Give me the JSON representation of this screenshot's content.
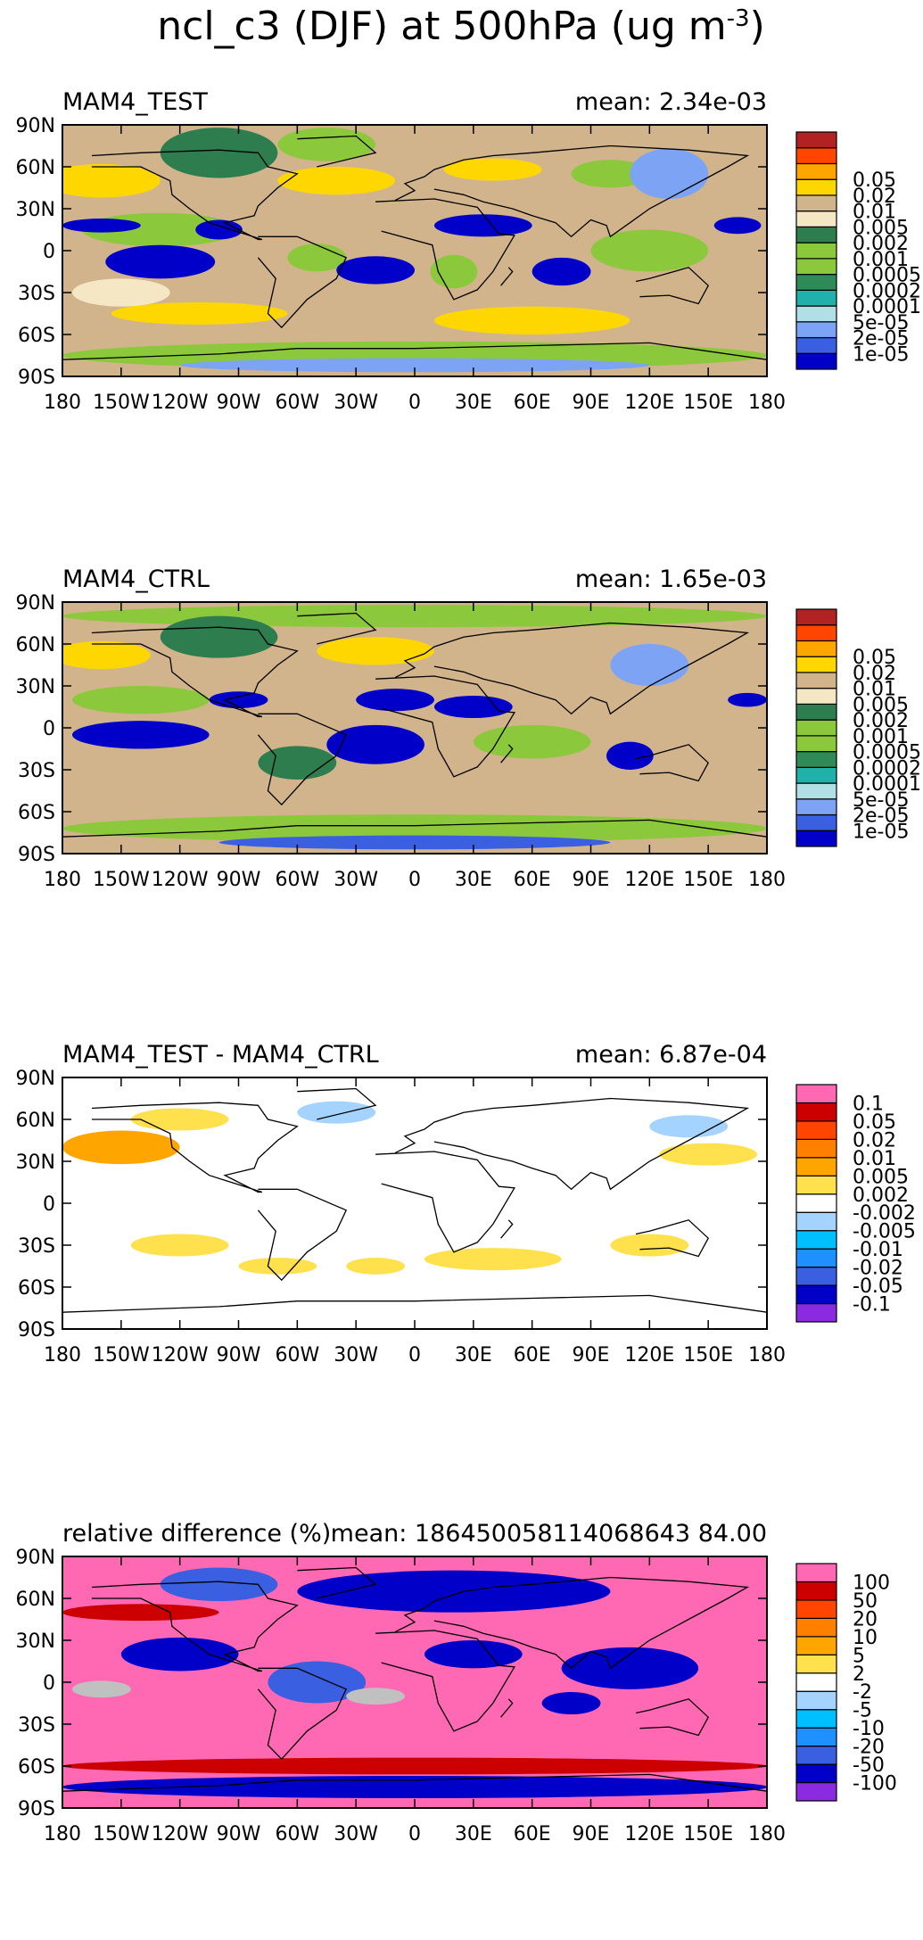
{
  "figure": {
    "title_main": "ncl_c3 (DJF) at 500hPa (ug m",
    "title_sup": "-3",
    "title_close": ")"
  },
  "chart_data": [
    {
      "type": "heatmap",
      "title_left": "MAM4_TEST",
      "title_right": "mean: 2.34e-03",
      "xlabels": [
        "180",
        "150W",
        "120W",
        "90W",
        "60W",
        "30W",
        "0",
        "30E",
        "60E",
        "90E",
        "120E",
        "150E",
        "180"
      ],
      "ylabels": [
        "90N",
        "60N",
        "30N",
        "0",
        "30S",
        "60S",
        "90S"
      ],
      "colorbar": {
        "labels": [
          "0.05",
          "0.02",
          "0.01",
          "0.005",
          "0.002",
          "0.001",
          "0.0005",
          "0.0002",
          "0.0001",
          "5e-05",
          "2e-05",
          "1e-05"
        ],
        "colors": [
          "#0000c8",
          "#3a5fe0",
          "#7da3f5",
          "#b0e0e6",
          "#20b2aa",
          "#2e8b57",
          "#8cc83c",
          "#8cc83c",
          "#2e7d4f",
          "#f5e6c4",
          "#d2b48c",
          "#ffd700",
          "#ffa500",
          "#ff4500",
          "#b22222"
        ]
      },
      "field": {
        "base": "#d2b48c",
        "blobs": [
          {
            "lon": -100,
            "lat": 70,
            "rx": 30,
            "ry": 18,
            "c": "#2e7d4f"
          },
          {
            "lon": -45,
            "lat": 76,
            "rx": 25,
            "ry": 12,
            "c": "#8cc83c"
          },
          {
            "lon": -160,
            "lat": 50,
            "rx": 30,
            "ry": 12,
            "c": "#ffd700"
          },
          {
            "lon": -40,
            "lat": 50,
            "rx": 30,
            "ry": 10,
            "c": "#ffd700"
          },
          {
            "lon": 40,
            "lat": 58,
            "rx": 25,
            "ry": 8,
            "c": "#ffd700"
          },
          {
            "lon": 100,
            "lat": 55,
            "rx": 20,
            "ry": 10,
            "c": "#8cc83c"
          },
          {
            "lon": 130,
            "lat": 55,
            "rx": 20,
            "ry": 18,
            "c": "#7da3f5"
          },
          {
            "lon": -130,
            "lat": 15,
            "rx": 40,
            "ry": 12,
            "c": "#8cc83c"
          },
          {
            "lon": -100,
            "lat": 15,
            "rx": 12,
            "ry": 7,
            "c": "#0000c8"
          },
          {
            "lon": -160,
            "lat": 18,
            "rx": 20,
            "ry": 5,
            "c": "#0000c8"
          },
          {
            "lon": -130,
            "lat": -8,
            "rx": 28,
            "ry": 12,
            "c": "#0000c8"
          },
          {
            "lon": -50,
            "lat": -5,
            "rx": 15,
            "ry": 10,
            "c": "#8cc83c"
          },
          {
            "lon": -20,
            "lat": -14,
            "rx": 20,
            "ry": 10,
            "c": "#0000c8"
          },
          {
            "lon": 20,
            "lat": -15,
            "rx": 12,
            "ry": 12,
            "c": "#8cc83c"
          },
          {
            "lon": 35,
            "lat": 18,
            "rx": 25,
            "ry": 8,
            "c": "#0000c8"
          },
          {
            "lon": 75,
            "lat": -15,
            "rx": 15,
            "ry": 10,
            "c": "#0000c8"
          },
          {
            "lon": 120,
            "lat": 0,
            "rx": 30,
            "ry": 15,
            "c": "#8cc83c"
          },
          {
            "lon": 165,
            "lat": 18,
            "rx": 12,
            "ry": 6,
            "c": "#0000c8"
          },
          {
            "lon": -110,
            "lat": -45,
            "rx": 45,
            "ry": 8,
            "c": "#ffd700"
          },
          {
            "lon": 60,
            "lat": -50,
            "rx": 50,
            "ry": 10,
            "c": "#ffd700"
          },
          {
            "lon": -150,
            "lat": -30,
            "rx": 25,
            "ry": 10,
            "c": "#f5e6c4"
          },
          {
            "lon": 0,
            "lat": -75,
            "rx": 180,
            "ry": 10,
            "c": "#8cc83c"
          },
          {
            "lon": 0,
            "lat": -82,
            "rx": 120,
            "ry": 5,
            "c": "#7da3f5"
          }
        ]
      }
    },
    {
      "type": "heatmap",
      "title_left": "MAM4_CTRL",
      "title_right": "mean: 1.65e-03",
      "xlabels": [
        "180",
        "150W",
        "120W",
        "90W",
        "60W",
        "30W",
        "0",
        "30E",
        "60E",
        "90E",
        "120E",
        "150E",
        "180"
      ],
      "ylabels": [
        "90N",
        "60N",
        "30N",
        "0",
        "30S",
        "60S",
        "90S"
      ],
      "colorbar": {
        "labels": [
          "0.05",
          "0.02",
          "0.01",
          "0.005",
          "0.002",
          "0.001",
          "0.0005",
          "0.0002",
          "0.0001",
          "5e-05",
          "2e-05",
          "1e-05"
        ],
        "colors": [
          "#0000c8",
          "#3a5fe0",
          "#7da3f5",
          "#b0e0e6",
          "#20b2aa",
          "#2e8b57",
          "#8cc83c",
          "#8cc83c",
          "#2e7d4f",
          "#f5e6c4",
          "#d2b48c",
          "#ffd700",
          "#ffa500",
          "#ff4500",
          "#b22222"
        ]
      },
      "field": {
        "base": "#d2b48c",
        "blobs": [
          {
            "lon": 0,
            "lat": 80,
            "rx": 180,
            "ry": 8,
            "c": "#8cc83c"
          },
          {
            "lon": -100,
            "lat": 65,
            "rx": 30,
            "ry": 15,
            "c": "#2e7d4f"
          },
          {
            "lon": -160,
            "lat": 52,
            "rx": 25,
            "ry": 10,
            "c": "#ffd700"
          },
          {
            "lon": -20,
            "lat": 55,
            "rx": 30,
            "ry": 10,
            "c": "#ffd700"
          },
          {
            "lon": 120,
            "lat": 45,
            "rx": 20,
            "ry": 15,
            "c": "#7da3f5"
          },
          {
            "lon": -140,
            "lat": 20,
            "rx": 35,
            "ry": 10,
            "c": "#8cc83c"
          },
          {
            "lon": -90,
            "lat": 20,
            "rx": 15,
            "ry": 6,
            "c": "#0000c8"
          },
          {
            "lon": -140,
            "lat": -5,
            "rx": 35,
            "ry": 10,
            "c": "#0000c8"
          },
          {
            "lon": -20,
            "lat": -12,
            "rx": 25,
            "ry": 14,
            "c": "#0000c8"
          },
          {
            "lon": -10,
            "lat": 20,
            "rx": 20,
            "ry": 8,
            "c": "#0000c8"
          },
          {
            "lon": 30,
            "lat": 15,
            "rx": 20,
            "ry": 8,
            "c": "#0000c8"
          },
          {
            "lon": 110,
            "lat": -20,
            "rx": 12,
            "ry": 10,
            "c": "#0000c8"
          },
          {
            "lon": 170,
            "lat": 20,
            "rx": 10,
            "ry": 5,
            "c": "#0000c8"
          },
          {
            "lon": 60,
            "lat": -10,
            "rx": 30,
            "ry": 12,
            "c": "#8cc83c"
          },
          {
            "lon": -60,
            "lat": -25,
            "rx": 20,
            "ry": 12,
            "c": "#2e7d4f"
          },
          {
            "lon": 0,
            "lat": -72,
            "rx": 180,
            "ry": 10,
            "c": "#8cc83c"
          },
          {
            "lon": 0,
            "lat": -82,
            "rx": 100,
            "ry": 5,
            "c": "#3a5fe0"
          }
        ]
      }
    },
    {
      "type": "heatmap",
      "title_left": "MAM4_TEST - MAM4_CTRL",
      "title_right": "mean: 6.87e-04",
      "xlabels": [
        "180",
        "150W",
        "120W",
        "90W",
        "60W",
        "30W",
        "0",
        "30E",
        "60E",
        "90E",
        "120E",
        "150E",
        "180"
      ],
      "ylabels": [
        "90N",
        "60N",
        "30N",
        "0",
        "30S",
        "60S",
        "90S"
      ],
      "colorbar": {
        "labels": [
          "0.1",
          "0.05",
          "0.02",
          "0.01",
          "0.005",
          "0.002",
          "-0.002",
          "-0.005",
          "-0.01",
          "-0.02",
          "-0.05",
          "-0.1"
        ],
        "colors": [
          "#8a2be2",
          "#0000c8",
          "#3a5fe0",
          "#1e90ff",
          "#00bfff",
          "#a4d3ff",
          "#ffffff",
          "#ffe14d",
          "#ffa500",
          "#ff7f00",
          "#ff4500",
          "#cc0000",
          "#ff69b4"
        ]
      },
      "field": {
        "base": "#ffffff",
        "blobs": [
          {
            "lon": -150,
            "lat": 40,
            "rx": 30,
            "ry": 12,
            "c": "#ffa500"
          },
          {
            "lon": -120,
            "lat": 60,
            "rx": 25,
            "ry": 8,
            "c": "#ffe14d"
          },
          {
            "lon": -40,
            "lat": 65,
            "rx": 20,
            "ry": 8,
            "c": "#a4d3ff"
          },
          {
            "lon": 150,
            "lat": 35,
            "rx": 25,
            "ry": 8,
            "c": "#ffe14d"
          },
          {
            "lon": 140,
            "lat": 55,
            "rx": 20,
            "ry": 8,
            "c": "#a4d3ff"
          },
          {
            "lon": -120,
            "lat": -30,
            "rx": 25,
            "ry": 8,
            "c": "#ffe14d"
          },
          {
            "lon": -70,
            "lat": -45,
            "rx": 20,
            "ry": 6,
            "c": "#ffe14d"
          },
          {
            "lon": 40,
            "lat": -40,
            "rx": 35,
            "ry": 8,
            "c": "#ffe14d"
          },
          {
            "lon": 120,
            "lat": -30,
            "rx": 20,
            "ry": 8,
            "c": "#ffe14d"
          },
          {
            "lon": -20,
            "lat": -45,
            "rx": 15,
            "ry": 6,
            "c": "#ffe14d"
          }
        ]
      }
    },
    {
      "type": "heatmap",
      "title_left": "relative difference (%)",
      "title_right": "mean: 186450058114068643 84.00",
      "xlabels": [
        "180",
        "150W",
        "120W",
        "90W",
        "60W",
        "30W",
        "0",
        "30E",
        "60E",
        "90E",
        "120E",
        "150E",
        "180"
      ],
      "ylabels": [
        "90N",
        "60N",
        "30N",
        "0",
        "30S",
        "60S",
        "90S"
      ],
      "colorbar": {
        "labels": [
          "100",
          "50",
          "20",
          "10",
          "5",
          "2",
          "-2",
          "-5",
          "-10",
          "-20",
          "-50",
          "-100"
        ],
        "colors": [
          "#8a2be2",
          "#0000c8",
          "#3a5fe0",
          "#1e90ff",
          "#00bfff",
          "#a4d3ff",
          "#ffffff",
          "#ffe14d",
          "#ffa500",
          "#ff7f00",
          "#ff4500",
          "#cc0000",
          "#ff69b4"
        ]
      },
      "field": {
        "base": "#ff69b4",
        "blobs": [
          {
            "lon": 20,
            "lat": 65,
            "rx": 80,
            "ry": 15,
            "c": "#0000c8"
          },
          {
            "lon": -100,
            "lat": 70,
            "rx": 30,
            "ry": 12,
            "c": "#3a5fe0"
          },
          {
            "lon": -120,
            "lat": 20,
            "rx": 30,
            "ry": 12,
            "c": "#0000c8"
          },
          {
            "lon": -50,
            "lat": 0,
            "rx": 25,
            "ry": 15,
            "c": "#3a5fe0"
          },
          {
            "lon": 30,
            "lat": 20,
            "rx": 25,
            "ry": 10,
            "c": "#0000c8"
          },
          {
            "lon": 110,
            "lat": 10,
            "rx": 35,
            "ry": 15,
            "c": "#0000c8"
          },
          {
            "lon": -160,
            "lat": -5,
            "rx": 15,
            "ry": 6,
            "c": "#c0c0c0"
          },
          {
            "lon": -20,
            "lat": -10,
            "rx": 15,
            "ry": 6,
            "c": "#c0c0c0"
          },
          {
            "lon": 80,
            "lat": -15,
            "rx": 15,
            "ry": 8,
            "c": "#0000c8"
          },
          {
            "lon": 0,
            "lat": -60,
            "rx": 180,
            "ry": 6,
            "c": "#cc0000"
          },
          {
            "lon": 0,
            "lat": -75,
            "rx": 180,
            "ry": 8,
            "c": "#0000c8"
          },
          {
            "lon": -140,
            "lat": 50,
            "rx": 40,
            "ry": 6,
            "c": "#cc0000"
          }
        ]
      }
    }
  ]
}
